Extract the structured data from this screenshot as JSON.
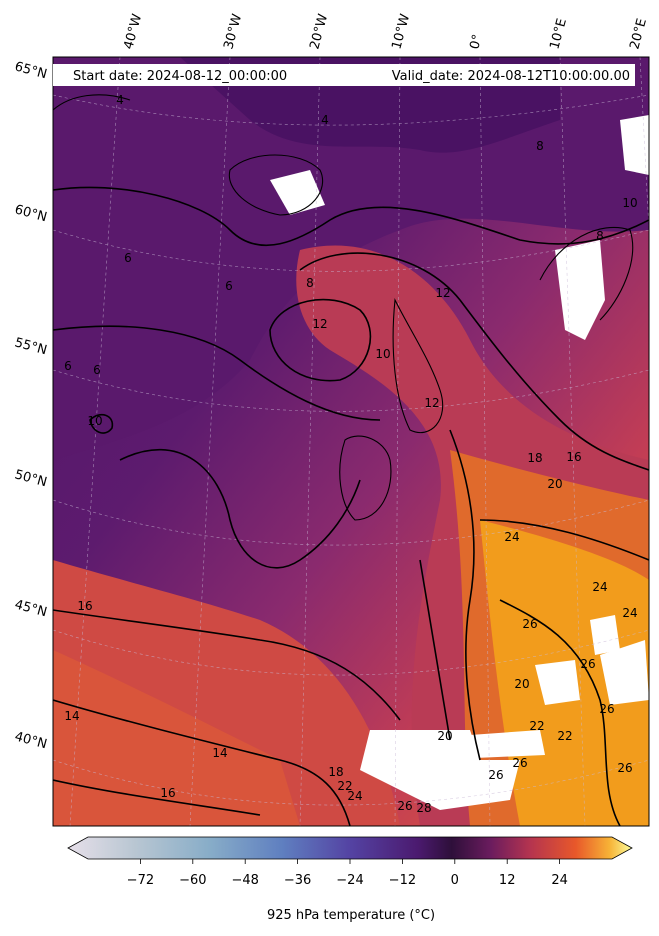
{
  "header": {
    "start_date": "Start date: 2024-08-12_00:00:00",
    "valid_date": "Valid_date: 2024-08-12T10:00:00.00"
  },
  "longitude_labels": [
    "40°W",
    "30°W",
    "20°W",
    "10°W",
    "0°",
    "10°E",
    "20°E"
  ],
  "latitude_labels": [
    "65°N",
    "60°N",
    "55°N",
    "50°N",
    "45°N",
    "40°N"
  ],
  "contour_labels": [
    "4",
    "4",
    "8",
    "8",
    "10",
    "6",
    "6",
    "8",
    "12",
    "12",
    "10",
    "6",
    "6",
    "10",
    "12",
    "18",
    "16",
    "20",
    "24",
    "24",
    "26",
    "16",
    "24",
    "26",
    "20",
    "22",
    "26",
    "26",
    "14",
    "14",
    "16",
    "18",
    "22",
    "24",
    "26",
    "28",
    "20",
    "22",
    "26",
    "26"
  ],
  "colorbar": {
    "label": "925 hPa temperature ($^\\circ$C)",
    "label_display": "925 hPa temperature (°C)",
    "ticks": [
      "−72",
      "−60",
      "−48",
      "−36",
      "−24",
      "−12",
      "0",
      "12",
      "24"
    ],
    "range": [
      -84,
      36
    ],
    "colormap": "twilight-to-inferno",
    "extend": "both"
  },
  "colors": {
    "cold_purple": "#5a1a6e",
    "mid_magenta": "#9a2f6b",
    "warm_red": "#d8483f",
    "hot_orange": "#f39a1a",
    "missing": "#ffffff"
  }
}
